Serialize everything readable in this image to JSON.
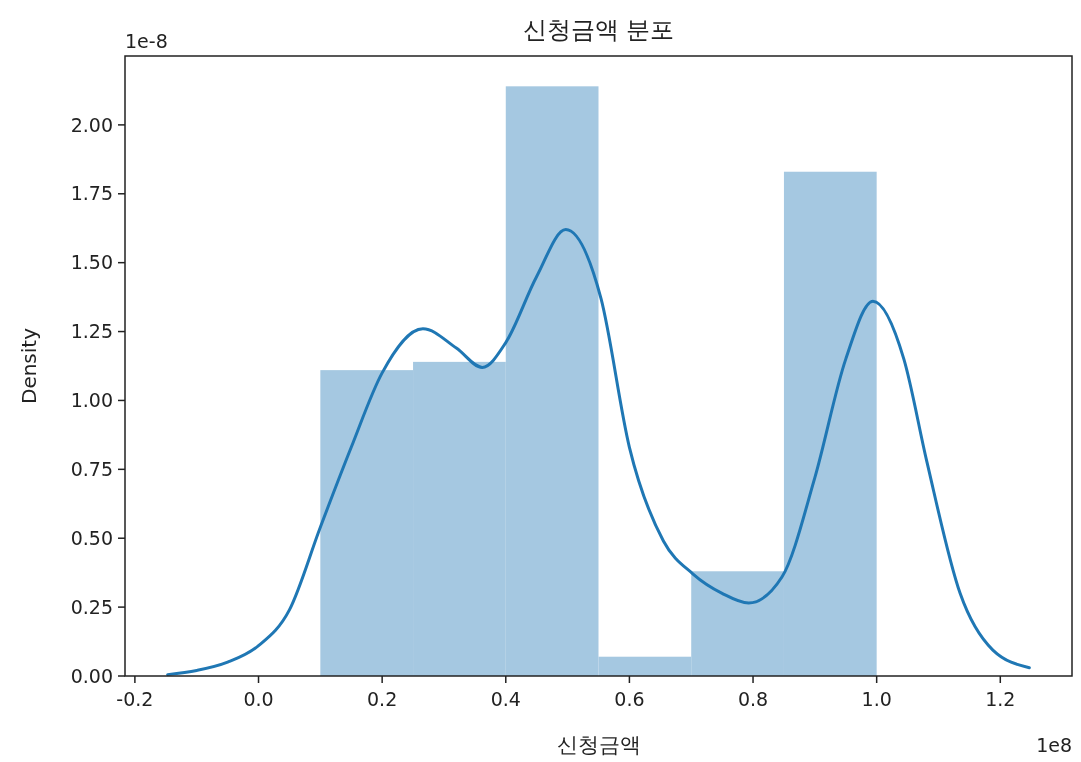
{
  "chart_data": {
    "type": "histogram",
    "title": "신청금액 분포",
    "xlabel": "신청금액",
    "ylabel": "Density",
    "annotations": [
      "1e-8",
      "1e8"
    ],
    "xlim": [
      -0.216,
      1.316
    ],
    "ylim": [
      0,
      2.25
    ],
    "xticks": [
      {
        "value": -0.2,
        "label": "-0.2"
      },
      {
        "value": 0,
        "label": "0.0"
      },
      {
        "value": 0.2,
        "label": "0.2"
      },
      {
        "value": 0.4,
        "label": "0.4"
      },
      {
        "value": 0.6,
        "label": "0.6"
      },
      {
        "value": 0.8,
        "label": "0.8"
      },
      {
        "value": 1,
        "label": "1.0"
      },
      {
        "value": 1.2,
        "label": "1.2"
      }
    ],
    "yticks": [
      {
        "value": 0,
        "label": "0.00"
      },
      {
        "value": 0.25,
        "label": "0.25"
      },
      {
        "value": 0.5,
        "label": "0.50"
      },
      {
        "value": 0.75,
        "label": "0.75"
      },
      {
        "value": 1,
        "label": "1.00"
      },
      {
        "value": 1.25,
        "label": "1.25"
      },
      {
        "value": 1.5,
        "label": "1.50"
      },
      {
        "value": 1.75,
        "label": "1.75"
      },
      {
        "value": 2,
        "label": "2.00"
      }
    ],
    "grid": false,
    "series": [
      {
        "color": "#a5c8e1",
        "bins": [
          0.1,
          0.25,
          0.4,
          0.55,
          0.7,
          0.85,
          1.0
        ],
        "values": [
          1.11,
          1.14,
          2.14,
          0.07,
          0.38,
          1.83
        ]
      },
      {
        "type": "line",
        "color": "#1f77b4",
        "x": [
          -0.147,
          -0.1,
          -0.05,
          0.0,
          0.05,
          0.1,
          0.15,
          0.2,
          0.266,
          0.32,
          0.362,
          0.4,
          0.45,
          0.497,
          0.554,
          0.6,
          0.655,
          0.703,
          0.75,
          0.793,
          0.847,
          0.9,
          0.95,
          0.994,
          1.044,
          1.081,
          1.135,
          1.188,
          1.247
        ],
        "values": [
          0.005,
          0.02,
          0.05,
          0.11,
          0.24,
          0.54,
          0.83,
          1.1,
          1.26,
          1.19,
          1.12,
          1.21,
          1.45,
          1.62,
          1.37,
          0.83,
          0.49,
          0.37,
          0.3,
          0.265,
          0.36,
          0.72,
          1.15,
          1.36,
          1.15,
          0.78,
          0.3,
          0.094,
          0.03
        ]
      }
    ]
  }
}
